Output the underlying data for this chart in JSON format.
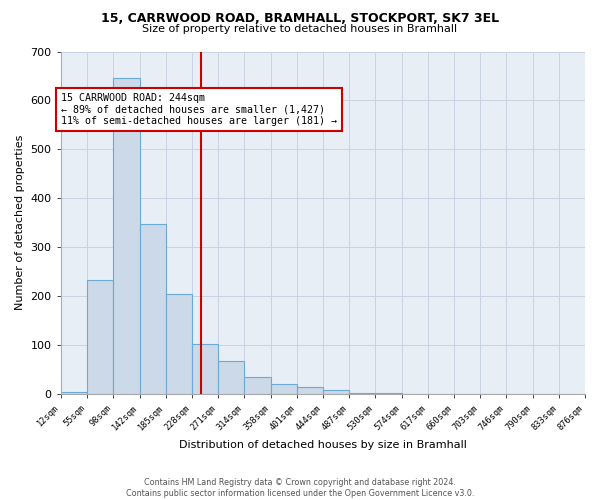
{
  "title_line1": "15, CARRWOOD ROAD, BRAMHALL, STOCKPORT, SK7 3EL",
  "title_line2": "Size of property relative to detached houses in Bramhall",
  "xlabel": "Distribution of detached houses by size in Bramhall",
  "ylabel": "Number of detached properties",
  "footnote": "Contains HM Land Registry data © Crown copyright and database right 2024.\nContains public sector information licensed under the Open Government Licence v3.0.",
  "bin_edges": [
    12,
    55,
    98,
    142,
    185,
    228,
    271,
    314,
    358,
    401,
    444,
    487,
    530,
    574,
    617,
    660,
    703,
    746,
    790,
    833,
    876
  ],
  "bar_heights": [
    5,
    233,
    645,
    348,
    205,
    103,
    68,
    35,
    20,
    15,
    8,
    3,
    2,
    0,
    0,
    0,
    0,
    0,
    0,
    0
  ],
  "bar_color": "#ccd9e8",
  "bar_edge_color": "#6aaad4",
  "vline_x": 244,
  "vline_color": "#cc0000",
  "annotation_text": "15 CARRWOOD ROAD: 244sqm\n← 89% of detached houses are smaller (1,427)\n11% of semi-detached houses are larger (181) →",
  "annotation_box_color": "#cc0000",
  "ylim": [
    0,
    700
  ],
  "yticks": [
    0,
    100,
    200,
    300,
    400,
    500,
    600,
    700
  ],
  "grid_color": "#c8d4e4",
  "background_color": "#e8eef6"
}
